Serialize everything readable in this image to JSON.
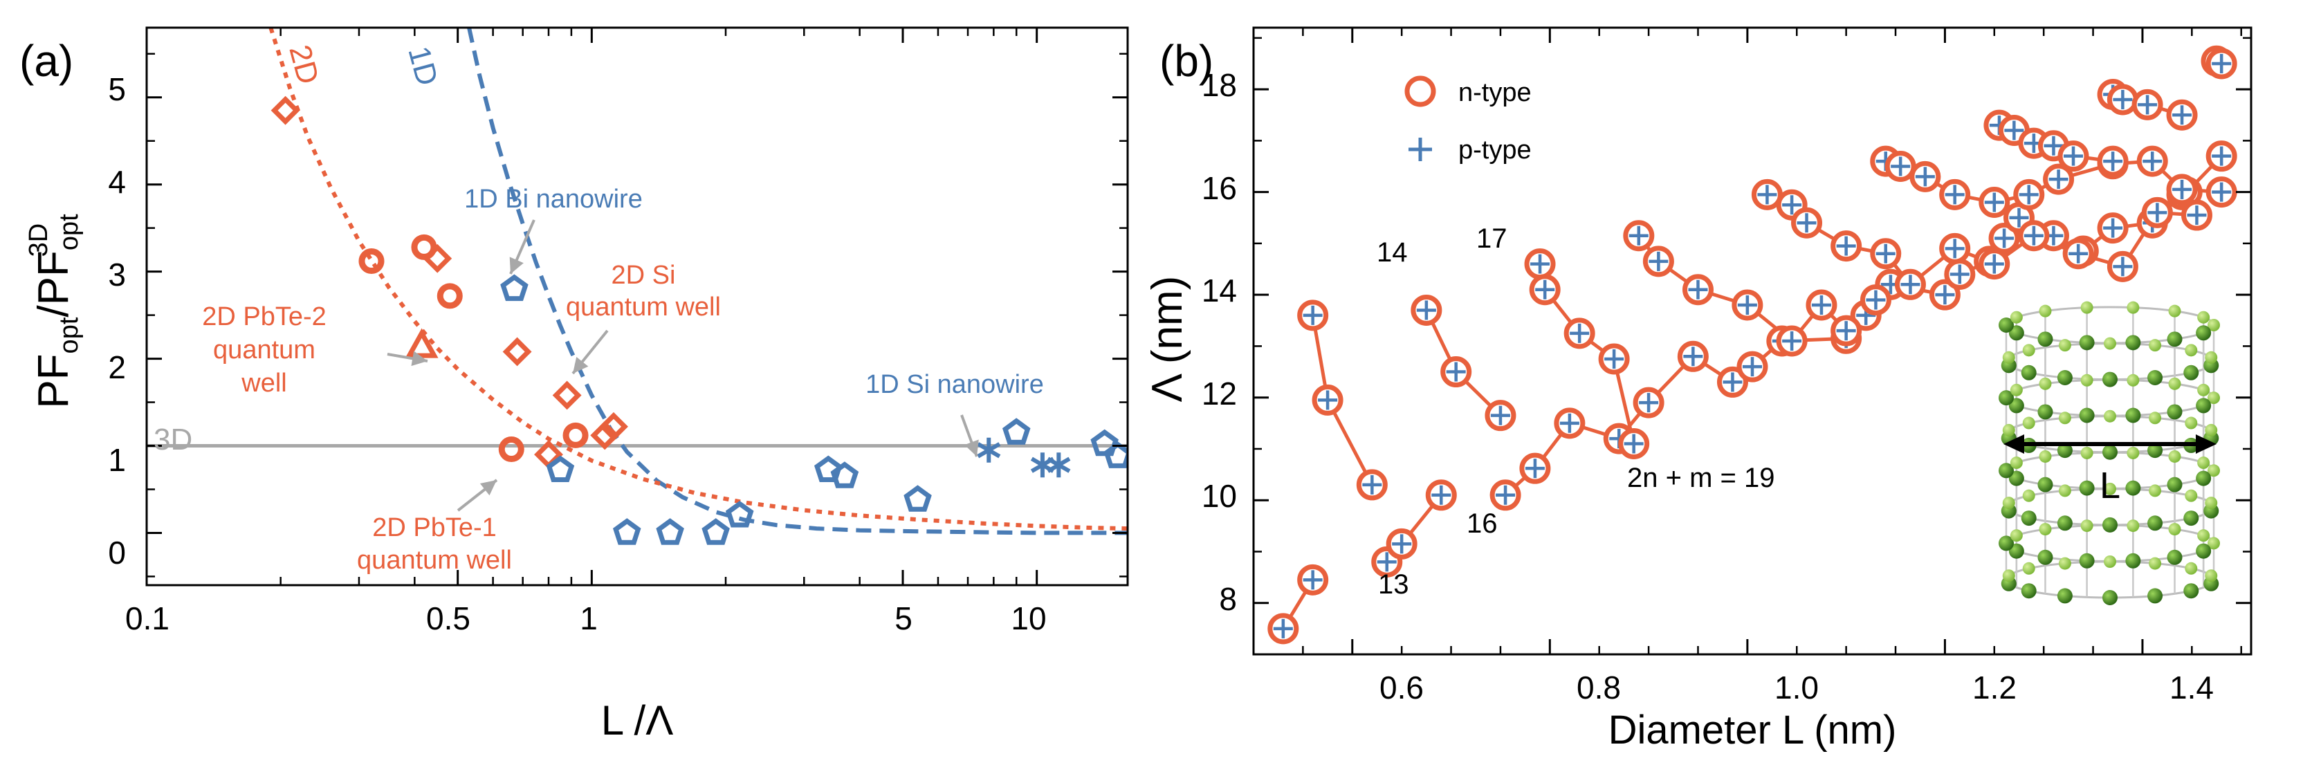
{
  "colors": {
    "orange": "#E8603C",
    "blue": "#4A7CB5",
    "gray": "#A8A8A8",
    "green_dark": "#3E7A1E",
    "green_light": "#8CC444",
    "axis": "#000000"
  },
  "chart_data": [
    {
      "panel_label": "(a)",
      "type": "scatter",
      "title": "",
      "xlabel": "L /Λ",
      "ylabel": "PF_opt/PF_opt^3D",
      "ylabel_parts": {
        "main": "PF",
        "sub1": "opt",
        "slash": "/PF",
        "sup2": "3D",
        "sub2": "opt"
      },
      "x_scale": "log",
      "xlim": [
        0.1,
        16
      ],
      "ylim": [
        -0.6,
        5.8
      ],
      "xticks": [
        0.1,
        0.5,
        1,
        5,
        10
      ],
      "xtick_labels": [
        "0.1",
        "0.5",
        "1",
        "5",
        "10"
      ],
      "yticks": [
        0,
        1,
        2,
        3,
        4,
        5
      ],
      "ytick_labels": [
        "0",
        "1",
        "2",
        "3",
        "4",
        "5"
      ],
      "reference_line": {
        "label": "3D",
        "y": 1
      },
      "curves": [
        {
          "label": "1D",
          "style": "dashed",
          "color": "blue",
          "x": [
            0.53,
            0.56,
            0.6,
            0.65,
            0.7,
            0.75,
            0.8,
            0.85,
            0.9,
            1.0,
            1.1,
            1.2,
            1.4,
            1.6,
            1.9,
            2.2,
            2.6,
            3.2,
            4.0,
            5.0,
            7.0,
            10.0,
            16.0
          ],
          "y": [
            5.8,
            5.25,
            4.65,
            4.05,
            3.55,
            3.1,
            2.72,
            2.38,
            2.08,
            1.58,
            1.2,
            0.93,
            0.6,
            0.41,
            0.24,
            0.15,
            0.09,
            0.05,
            0.03,
            0.02,
            0.01,
            0.0,
            0.0
          ]
        },
        {
          "label": "2D",
          "style": "dotted",
          "color": "orange",
          "x": [
            0.19,
            0.21,
            0.23,
            0.26,
            0.3,
            0.35,
            0.4,
            0.45,
            0.5,
            0.6,
            0.7,
            0.8,
            1.0,
            1.3,
            1.7,
            2.2,
            3.0,
            4.0,
            5.5,
            7.5,
            10.0,
            13.0,
            16.0
          ],
          "y": [
            5.8,
            5.1,
            4.55,
            3.95,
            3.35,
            2.82,
            2.43,
            2.12,
            1.88,
            1.53,
            1.27,
            1.08,
            0.83,
            0.62,
            0.46,
            0.35,
            0.26,
            0.2,
            0.15,
            0.11,
            0.08,
            0.06,
            0.05
          ]
        }
      ],
      "points": [
        {
          "marker": "diamond",
          "color": "orange",
          "x": 0.205,
          "y": 4.85
        },
        {
          "marker": "circle",
          "color": "orange",
          "x": 0.32,
          "y": 3.12
        },
        {
          "marker": "circle",
          "color": "orange",
          "x": 0.42,
          "y": 3.28
        },
        {
          "marker": "diamond",
          "color": "orange",
          "x": 0.45,
          "y": 3.15
        },
        {
          "marker": "circle",
          "color": "orange",
          "x": 0.48,
          "y": 2.72
        },
        {
          "marker": "triangle",
          "color": "orange",
          "x": 0.415,
          "y": 2.15
        },
        {
          "marker": "diamond",
          "color": "orange",
          "x": 0.68,
          "y": 2.08
        },
        {
          "marker": "diamond",
          "color": "orange",
          "x": 0.88,
          "y": 1.58
        },
        {
          "marker": "diamond",
          "color": "orange",
          "x": 1.07,
          "y": 1.12
        },
        {
          "marker": "diamond",
          "color": "orange",
          "x": 1.12,
          "y": 1.22
        },
        {
          "marker": "circle",
          "color": "orange",
          "x": 0.66,
          "y": 0.96
        },
        {
          "marker": "circle",
          "color": "orange",
          "x": 0.92,
          "y": 1.12
        },
        {
          "marker": "diamond",
          "color": "orange",
          "x": 0.8,
          "y": 0.9
        },
        {
          "marker": "pentagon",
          "color": "blue",
          "x": 0.67,
          "y": 2.8
        },
        {
          "marker": "pentagon",
          "color": "blue",
          "x": 0.85,
          "y": 0.72
        },
        {
          "marker": "pentagon",
          "color": "blue",
          "x": 1.2,
          "y": 0.0
        },
        {
          "marker": "pentagon",
          "color": "blue",
          "x": 1.5,
          "y": 0.0
        },
        {
          "marker": "pentagon",
          "color": "blue",
          "x": 1.9,
          "y": 0.0
        },
        {
          "marker": "pentagon",
          "color": "blue",
          "x": 2.15,
          "y": 0.2
        },
        {
          "marker": "pentagon",
          "color": "blue",
          "x": 3.4,
          "y": 0.72
        },
        {
          "marker": "pentagon",
          "color": "blue",
          "x": 3.7,
          "y": 0.65
        },
        {
          "marker": "pentagon",
          "color": "blue",
          "x": 5.4,
          "y": 0.38
        },
        {
          "marker": "pentagon",
          "color": "blue",
          "x": 9.0,
          "y": 1.15
        },
        {
          "marker": "pentagon",
          "color": "blue",
          "x": 14.2,
          "y": 1.02
        },
        {
          "marker": "pentagon",
          "color": "blue",
          "x": 15.2,
          "y": 0.88
        },
        {
          "marker": "asterisk",
          "color": "blue",
          "x": 7.8,
          "y": 0.95
        },
        {
          "marker": "asterisk",
          "color": "blue",
          "x": 10.3,
          "y": 0.78
        },
        {
          "marker": "asterisk",
          "color": "blue",
          "x": 11.2,
          "y": 0.78
        }
      ],
      "annotations": [
        {
          "lines": [
            "1D Bi nanowire"
          ],
          "color": "blue"
        },
        {
          "lines": [
            "2D Si",
            "quantum well"
          ],
          "color": "orange"
        },
        {
          "lines": [
            "2D PbTe-2",
            "quantum",
            "well"
          ],
          "color": "orange"
        },
        {
          "lines": [
            "1D Si nanowire"
          ],
          "color": "blue"
        },
        {
          "lines": [
            "2D PbTe-1",
            "quantum well"
          ],
          "color": "orange"
        }
      ]
    },
    {
      "panel_label": "(b)",
      "type": "scatter",
      "title": "",
      "xlabel": "Diameter L (nm)",
      "ylabel": "Λ (nm)",
      "xlim": [
        0.5,
        1.51
      ],
      "ylim": [
        7.0,
        19.2
      ],
      "xticks": [
        0.6,
        0.8,
        1.0,
        1.2,
        1.4
      ],
      "xtick_labels": [
        "0.6",
        "0.8",
        "1.0",
        "1.2",
        "1.4"
      ],
      "yticks": [
        8,
        10,
        12,
        14,
        16,
        18
      ],
      "ytick_labels": [
        "8",
        "10",
        "12",
        "14",
        "16",
        "18"
      ],
      "legend": {
        "position": "top-left",
        "entries": [
          {
            "label": "n-type",
            "marker": "circle",
            "color": "orange"
          },
          {
            "label": "p-type",
            "marker": "plus",
            "color": "blue"
          }
        ]
      },
      "series_labels": [
        "13",
        "14",
        "16",
        "17",
        "2n + m = 19"
      ],
      "inset_label": "L",
      "series": [
        {
          "x": [
            0.53,
            0.56
          ],
          "y": [
            7.5,
            8.45
          ]
        },
        {
          "x": [
            0.56,
            0.575,
            0.62
          ],
          "y": [
            13.6,
            11.95,
            10.3
          ]
        },
        {
          "x": [
            0.635,
            0.65,
            0.69
          ],
          "y": [
            8.8,
            9.15,
            10.1
          ]
        },
        {
          "x": [
            0.675,
            0.705,
            0.75
          ],
          "y": [
            13.7,
            12.5,
            11.65
          ]
        },
        {
          "x": [
            0.755,
            0.785,
            0.82,
            0.87,
            0.9,
            0.945,
            0.985,
            1.005,
            1.035,
            1.1,
            1.12,
            1.145,
            1.2,
            1.215,
            1.245,
            1.26,
            1.275,
            1.31,
            1.34,
            1.37,
            1.41,
            1.44,
            1.445,
            1.48
          ],
          "y": [
            10.1,
            10.62,
            11.5,
            11.2,
            11.9,
            12.8,
            12.3,
            12.6,
            13.1,
            13.15,
            13.6,
            14.2,
            14.0,
            14.4,
            14.65,
            15.1,
            15.5,
            15.15,
            14.85,
            15.3,
            15.4,
            15.95,
            16.0,
            16.7
          ]
        },
        {
          "x": [
            0.79,
            0.795,
            0.83,
            0.865,
            0.885
          ],
          "y": [
            14.6,
            14.1,
            13.25,
            12.75,
            11.1
          ]
        },
        {
          "x": [
            0.89,
            0.91,
            0.95,
            1.0,
            1.045,
            1.075,
            1.1,
            1.13
          ],
          "y": [
            15.15,
            14.65,
            14.1,
            13.8,
            13.1,
            13.8,
            13.3,
            13.9
          ]
        },
        {
          "x": [
            1.02,
            1.045,
            1.06,
            1.1,
            1.14,
            1.165,
            1.21,
            1.25,
            1.29,
            1.335,
            1.38,
            1.415,
            1.455
          ],
          "y": [
            15.95,
            15.75,
            15.4,
            14.95,
            14.8,
            14.2,
            14.9,
            14.6,
            15.15,
            14.8,
            14.55,
            15.6,
            15.55
          ]
        },
        {
          "x": [
            1.14,
            1.155,
            1.18,
            1.21,
            1.25,
            1.285,
            1.315,
            1.37,
            1.41,
            1.44,
            1.48
          ],
          "y": [
            16.6,
            16.5,
            16.3,
            15.95,
            15.8,
            15.95,
            16.25,
            16.55,
            16.6,
            16.05,
            16.0
          ]
        },
        {
          "x": [
            1.255,
            1.27,
            1.29,
            1.31,
            1.33,
            1.37
          ],
          "y": [
            17.3,
            17.2,
            16.95,
            16.9,
            16.7,
            16.6
          ]
        },
        {
          "x": [
            1.37,
            1.38,
            1.405,
            1.44
          ],
          "y": [
            17.9,
            17.8,
            17.7,
            17.5
          ]
        },
        {
          "x": [
            1.475,
            1.48
          ],
          "y": [
            18.55,
            18.5
          ]
        }
      ]
    }
  ]
}
